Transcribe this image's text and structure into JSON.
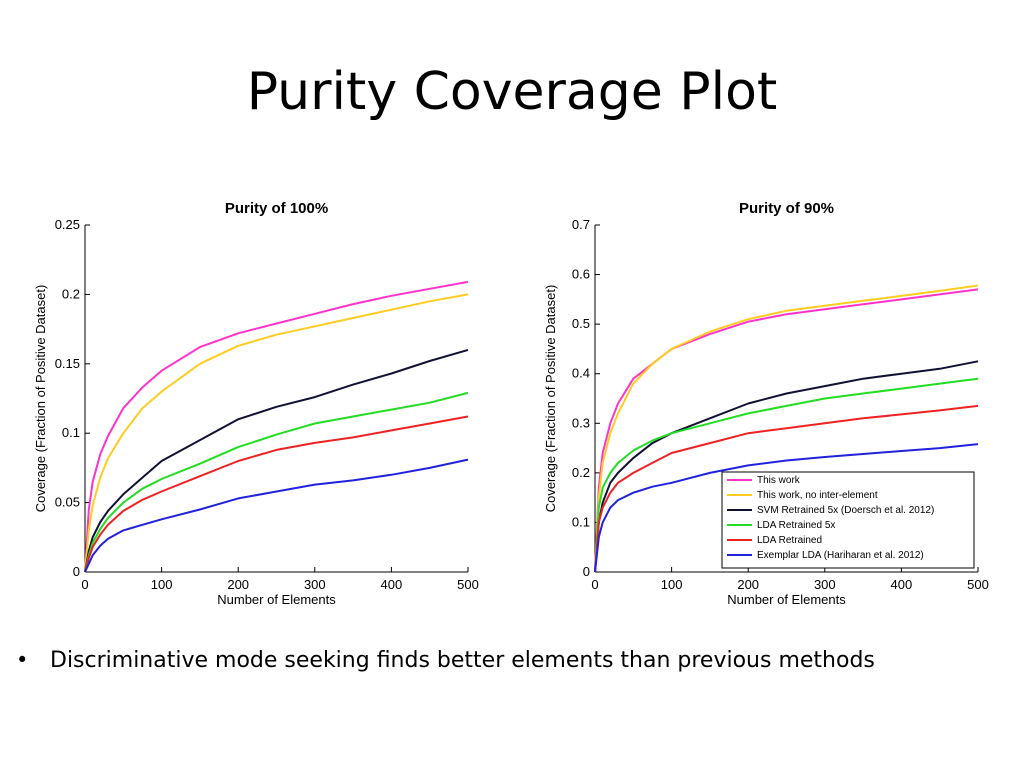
{
  "slide": {
    "title": "Purity Coverage Plot",
    "bullet_symbol": "•",
    "bullet_text": "Discriminative mode seeking finds better elements than previous methods"
  },
  "chart_data": [
    {
      "type": "line",
      "title": "Purity of 100%",
      "xlabel": "Number of Elements",
      "ylabel": "Coverage (Fraction of Positive Dataset)",
      "xlim": [
        0,
        500
      ],
      "ylim": [
        0,
        0.25
      ],
      "xticks": [
        0,
        100,
        200,
        300,
        400,
        500
      ],
      "yticks": [
        0,
        0.05,
        0.1,
        0.15,
        0.2,
        0.25
      ],
      "ytick_labels": [
        "0",
        "0.05",
        "0.1",
        "0.15",
        "0.2",
        "0.25"
      ],
      "grid": false,
      "legend": null,
      "x": [
        0,
        5,
        10,
        20,
        30,
        50,
        75,
        100,
        150,
        200,
        250,
        300,
        350,
        400,
        450,
        500
      ],
      "series": [
        {
          "color": "#ff33cc",
          "values": [
            0,
            0.045,
            0.065,
            0.085,
            0.098,
            0.118,
            0.133,
            0.145,
            0.162,
            0.172,
            0.179,
            0.186,
            0.193,
            0.199,
            0.204,
            0.209
          ]
        },
        {
          "color": "#ffcc22",
          "values": [
            0,
            0.03,
            0.048,
            0.068,
            0.082,
            0.1,
            0.118,
            0.13,
            0.15,
            0.163,
            0.171,
            0.177,
            0.183,
            0.189,
            0.195,
            0.2
          ]
        },
        {
          "color": "#111133",
          "values": [
            0,
            0.015,
            0.025,
            0.036,
            0.044,
            0.056,
            0.068,
            0.08,
            0.095,
            0.11,
            0.119,
            0.126,
            0.135,
            0.143,
            0.152,
            0.16
          ]
        },
        {
          "color": "#22dd22",
          "values": [
            0,
            0.012,
            0.021,
            0.031,
            0.039,
            0.05,
            0.06,
            0.067,
            0.078,
            0.09,
            0.099,
            0.107,
            0.112,
            0.117,
            0.122,
            0.129
          ]
        },
        {
          "color": "#ee2222",
          "values": [
            0,
            0.01,
            0.018,
            0.027,
            0.034,
            0.044,
            0.052,
            0.058,
            0.069,
            0.08,
            0.088,
            0.093,
            0.097,
            0.102,
            0.107,
            0.112
          ]
        },
        {
          "color": "#2222dd",
          "values": [
            0,
            0.006,
            0.012,
            0.019,
            0.024,
            0.03,
            0.034,
            0.038,
            0.045,
            0.053,
            0.058,
            0.063,
            0.066,
            0.07,
            0.075,
            0.081
          ]
        }
      ]
    },
    {
      "type": "line",
      "title": "Purity of 90%",
      "xlabel": "Number of Elements",
      "ylabel": "Coverage (Fraction of Positive Dataset)",
      "xlim": [
        0,
        500
      ],
      "ylim": [
        0,
        0.7
      ],
      "xticks": [
        0,
        100,
        200,
        300,
        400,
        500
      ],
      "yticks": [
        0,
        0.1,
        0.2,
        0.3,
        0.4,
        0.5,
        0.6,
        0.7
      ],
      "ytick_labels": [
        "0",
        "0.1",
        "0.2",
        "0.3",
        "0.4",
        "0.5",
        "0.6",
        "0.7"
      ],
      "grid": false,
      "legend": "bottom-right",
      "x": [
        0,
        5,
        10,
        20,
        30,
        50,
        75,
        100,
        150,
        200,
        250,
        300,
        350,
        400,
        450,
        500
      ],
      "series": [
        {
          "name": "This work",
          "color": "#ff33cc",
          "values": [
            0,
            0.17,
            0.24,
            0.3,
            0.34,
            0.39,
            0.42,
            0.45,
            0.48,
            0.505,
            0.52,
            0.53,
            0.54,
            0.55,
            0.56,
            0.57
          ]
        },
        {
          "name": "This work, no inter-element",
          "color": "#ffcc22",
          "values": [
            0,
            0.15,
            0.22,
            0.28,
            0.32,
            0.38,
            0.42,
            0.45,
            0.485,
            0.51,
            0.527,
            0.537,
            0.547,
            0.557,
            0.567,
            0.578
          ]
        },
        {
          "name": "SVM Retrained 5x (Doersch et al. 2012)",
          "color": "#111133",
          "values": [
            0,
            0.1,
            0.14,
            0.18,
            0.2,
            0.23,
            0.26,
            0.28,
            0.31,
            0.34,
            0.36,
            0.375,
            0.39,
            0.4,
            0.41,
            0.425
          ]
        },
        {
          "name": "LDA Retrained 5x",
          "color": "#22dd22",
          "values": [
            0,
            0.13,
            0.17,
            0.2,
            0.22,
            0.245,
            0.265,
            0.28,
            0.3,
            0.32,
            0.335,
            0.35,
            0.36,
            0.37,
            0.38,
            0.39
          ]
        },
        {
          "name": "LDA Retrained",
          "color": "#ee2222",
          "values": [
            0,
            0.1,
            0.13,
            0.16,
            0.18,
            0.2,
            0.22,
            0.24,
            0.26,
            0.28,
            0.29,
            0.3,
            0.31,
            0.318,
            0.326,
            0.335
          ]
        },
        {
          "name": "Exemplar LDA (Hariharan et al. 2012)",
          "color": "#2222dd",
          "values": [
            0,
            0.07,
            0.1,
            0.13,
            0.145,
            0.16,
            0.172,
            0.18,
            0.2,
            0.215,
            0.225,
            0.232,
            0.238,
            0.244,
            0.25,
            0.258
          ]
        }
      ]
    }
  ]
}
